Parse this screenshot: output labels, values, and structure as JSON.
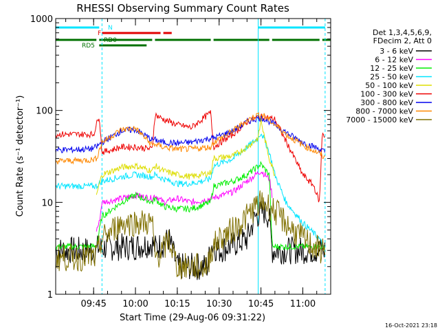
{
  "chart_data": {
    "type": "line",
    "title": "RHESSI Observing Summary Count Rates",
    "ylabel": "Count Rate (s⁻¹ detector⁻¹)",
    "xlabel": "Start Time (29-Aug-06 09:31:22)",
    "y_scale": "log",
    "ylim": [
      1,
      1000
    ],
    "y_tick_labels": [
      "1",
      "10",
      "100",
      "1000"
    ],
    "x_tick_labels": [
      "09:45",
      "10:00",
      "10:15",
      "10:30",
      "10:45",
      "11:00"
    ],
    "x_tick_minutes": [
      45,
      60,
      75,
      90,
      105,
      120
    ],
    "xlim_minutes": [
      31.4,
      130
    ],
    "legend_header": [
      "Det 1,3,4,5,6,9,",
      "FDecim 2, Att 0"
    ],
    "legend_position": "right",
    "footer": "16-Oct-2021 23:18",
    "flags": [
      {
        "name": "N",
        "color": "#00e5ff",
        "segments": [
          [
            31.4,
            47
          ],
          [
            104,
            128
          ]
        ]
      },
      {
        "name": "F",
        "color": "#e00000",
        "segments": [
          [
            48,
            69
          ],
          [
            70,
            73
          ]
        ]
      },
      {
        "name": "RD0",
        "color": "#007000",
        "segments": [
          [
            31.4,
            46
          ],
          [
            47,
            66
          ],
          [
            67,
            87
          ],
          [
            88,
            108
          ],
          [
            109,
            126
          ],
          [
            127,
            130
          ]
        ]
      },
      {
        "name": "RD5",
        "color": "#007000",
        "segments": [
          [
            47,
            64
          ]
        ]
      }
    ],
    "night_boundaries_minutes": [
      48,
      104,
      128
    ],
    "series": [
      {
        "name": "3 - 6 keV",
        "color": "#000000",
        "x": [
          31.4,
          46,
          46.5,
          60,
          66,
          67,
          70,
          72,
          75,
          86,
          87,
          90,
          100,
          103,
          106,
          108,
          109,
          128
        ],
        "y": [
          3,
          3,
          3.2,
          3.3,
          3.6,
          3.2,
          3.5,
          4,
          2,
          2,
          3.5,
          3,
          4,
          7,
          8,
          7,
          3,
          3
        ]
      },
      {
        "name": "6 - 12 keV",
        "color": "#ff00ff",
        "x": [
          46,
          47,
          48,
          55,
          60,
          66,
          67,
          70,
          75,
          80,
          87,
          95,
          100,
          105,
          108,
          109
        ],
        "y": [
          5,
          6,
          10,
          11,
          12,
          11,
          12,
          10,
          11,
          10,
          11,
          13,
          17,
          22,
          18,
          12
        ]
      },
      {
        "name": "12 - 25 keV",
        "color": "#00ee00",
        "x": [
          31.4,
          46,
          48,
          55,
          60,
          66,
          67,
          70,
          75,
          80,
          87,
          88,
          95,
          100,
          105,
          108,
          109,
          128
        ],
        "y": [
          3.3,
          3.3,
          7,
          10,
          12,
          10,
          11,
          9,
          8.5,
          8.5,
          10,
          15,
          17,
          20,
          26,
          20,
          3.3,
          3.3
        ]
      },
      {
        "name": "25 - 50 keV",
        "color": "#00e5ff",
        "x": [
          31.4,
          46,
          48,
          55,
          60,
          66,
          67,
          70,
          75,
          80,
          87,
          88,
          95,
          100,
          104,
          105,
          106,
          108,
          110,
          114,
          120,
          126,
          128
        ],
        "y": [
          15,
          15,
          17,
          19,
          20,
          19,
          20,
          18,
          16,
          16,
          18,
          25,
          30,
          40,
          50,
          58,
          50,
          35,
          20,
          10,
          6,
          4,
          3
        ]
      },
      {
        "name": "50 - 100 keV",
        "color": "#dddd00",
        "x": [
          46,
          48,
          55,
          60,
          66,
          67,
          70,
          75,
          80,
          87,
          88,
          95,
          100,
          104,
          105,
          106,
          108,
          110
        ],
        "y": [
          12,
          20,
          24,
          25,
          22,
          25,
          22,
          20,
          19,
          21,
          30,
          32,
          40,
          50,
          80,
          55,
          30,
          20
        ]
      },
      {
        "name": "100 - 300 keV",
        "color": "#ee0000",
        "x": [
          31.4,
          45,
          46,
          47,
          48,
          55,
          60,
          66,
          67,
          70,
          75,
          80,
          87,
          88,
          95,
          100,
          104,
          106,
          110,
          116,
          120,
          124,
          126,
          127,
          128
        ],
        "y": [
          55,
          55,
          70,
          90,
          35,
          40,
          40,
          38,
          90,
          80,
          70,
          65,
          95,
          40,
          55,
          75,
          85,
          85,
          80,
          35,
          20,
          15,
          10,
          60,
          50
        ]
      },
      {
        "name": "300 - 800 keV",
        "color": "#0000ee",
        "x": [
          31.4,
          44,
          46,
          48,
          55,
          60,
          66,
          67,
          70,
          75,
          80,
          87,
          88,
          95,
          100,
          104,
          106,
          110,
          115,
          120,
          126,
          128
        ],
        "y": [
          37,
          38,
          40,
          45,
          60,
          62,
          48,
          48,
          45,
          44,
          45,
          50,
          50,
          60,
          75,
          83,
          82,
          70,
          55,
          45,
          38,
          35
        ]
      },
      {
        "name": "800 - 7000 keV",
        "color": "#ff8800",
        "x": [
          31.4,
          44,
          46,
          48,
          55,
          60,
          66,
          67,
          70,
          75,
          80,
          87,
          88,
          95,
          100,
          104,
          106,
          110,
          115,
          120,
          126,
          128
        ],
        "y": [
          28,
          29,
          30,
          45,
          62,
          64,
          42,
          43,
          40,
          38,
          38,
          40,
          45,
          60,
          78,
          90,
          88,
          70,
          52,
          42,
          34,
          30
        ]
      },
      {
        "name": "7000 - 15000 keV",
        "color": "#807000",
        "x": [
          31.4,
          46,
          48,
          55,
          60,
          66,
          67,
          70,
          72,
          75,
          86,
          87,
          90,
          95,
          100,
          103,
          106,
          108,
          110,
          115,
          120,
          126,
          128
        ],
        "y": [
          2.5,
          2.5,
          4,
          6,
          6,
          6,
          2.5,
          3,
          4,
          2,
          2,
          3,
          4,
          5,
          7,
          9,
          10,
          9,
          8,
          5.5,
          4,
          3,
          3
        ]
      }
    ]
  }
}
